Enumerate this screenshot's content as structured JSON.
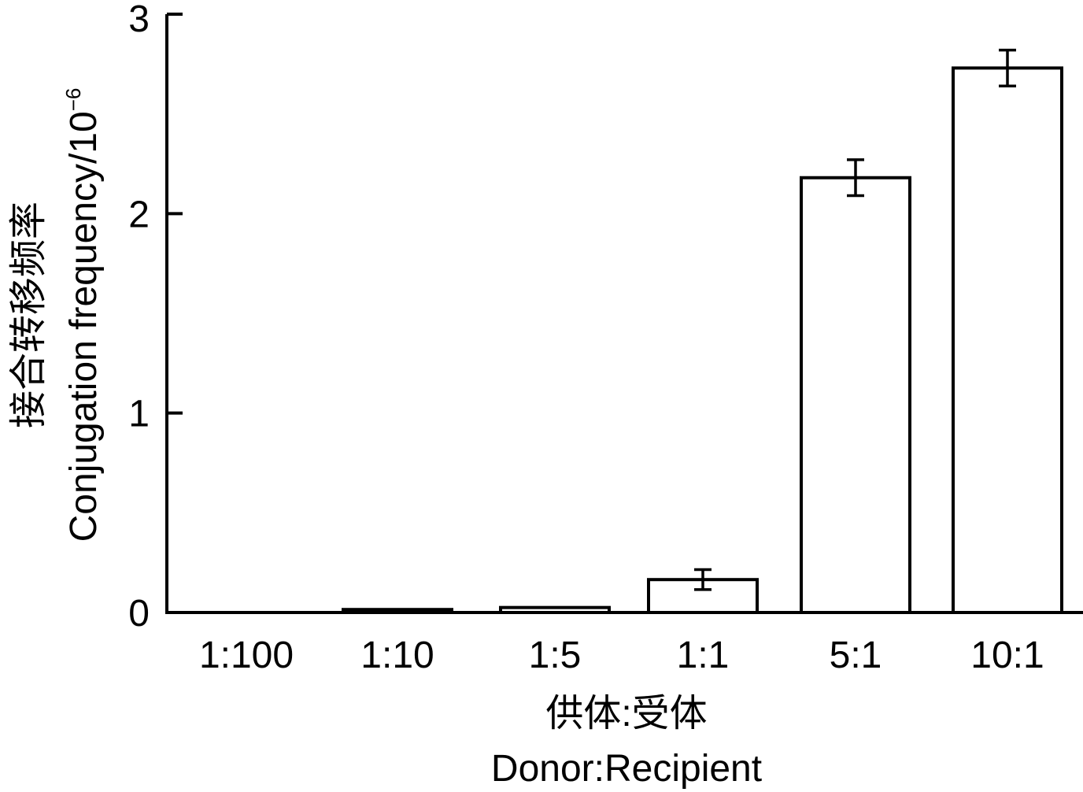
{
  "chart_data": {
    "type": "bar",
    "categories": [
      "1:100",
      "1:10",
      "1:5",
      "1:1",
      "5:1",
      "10:1"
    ],
    "series": [
      {
        "values": [
          0.0,
          0.015,
          0.025,
          0.165,
          2.18,
          2.73
        ],
        "errors": [
          0.0,
          0.0,
          0.0,
          0.05,
          0.09,
          0.09
        ]
      }
    ],
    "ylim": [
      0,
      3
    ],
    "yticks": [
      "0",
      "1",
      "2",
      "3"
    ],
    "xlabel_cn": "供体:受体",
    "xlabel_en": "Donor:Recipient",
    "ylabel_cn": "接合转移频率",
    "ylabel_en": "Conjugation frequency/10",
    "ylabel_exp": "−6",
    "grid": false,
    "legend": "none"
  }
}
